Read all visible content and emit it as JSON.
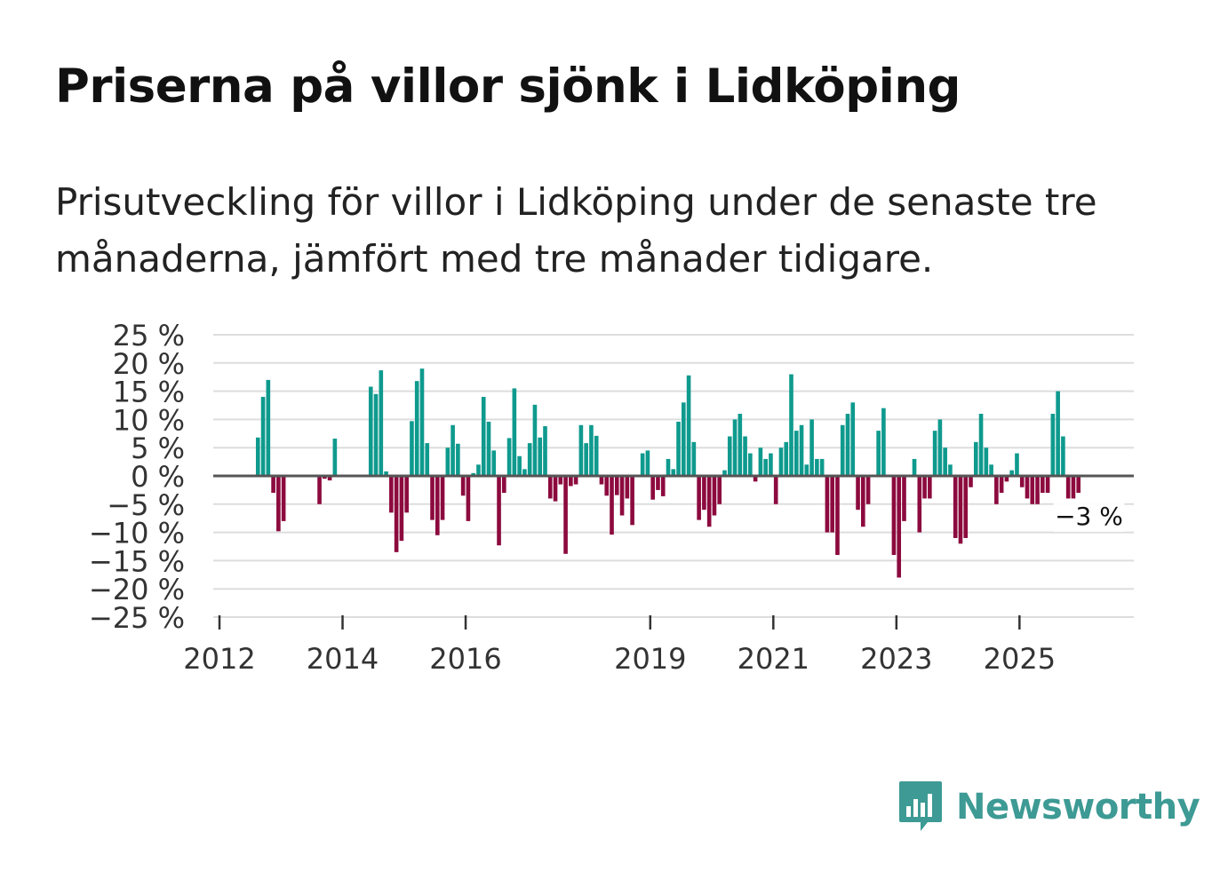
{
  "title": "Priserna på villor sjönk i Lidköping",
  "subtitle": "Prisutveckling för villor i Lidköping under de senaste tre månaderna, jämfört med tre månader tidigare.",
  "brand": {
    "name": "Newsworthy",
    "color": "#3d9a94",
    "icon": "bar-chart-speech-bubble-icon"
  },
  "colors": {
    "positive": "#0f9a8e",
    "negative": "#8c0a3e",
    "grid": "#dddddd",
    "zero_line": "#555555"
  },
  "chart_data": {
    "type": "bar",
    "title": "Priserna på villor sjönk i Lidköping",
    "xlabel": "",
    "ylabel": "",
    "ylim": [
      -25,
      25
    ],
    "y_ticks": [
      25,
      20,
      15,
      10,
      5,
      0,
      -5,
      -10,
      -15,
      -20,
      -25
    ],
    "y_tick_labels": [
      "25 %",
      "20 %",
      "15 %",
      "10 %",
      "5 %",
      "0 %",
      "−5 %",
      "−10 %",
      "−15 %",
      "−20 %",
      "−25 %"
    ],
    "x_range": [
      2012.0,
      2026.67
    ],
    "x_ticks": [
      2012,
      2014,
      2016,
      2019,
      2021,
      2023,
      2025
    ],
    "x_tick_labels": [
      "2012",
      "2014",
      "2016",
      "2019",
      "2021",
      "2023",
      "2025"
    ],
    "grid": true,
    "start": "2012-01",
    "frequency": "monthly",
    "values": [
      null,
      null,
      null,
      null,
      null,
      null,
      null,
      6.8,
      14,
      17,
      -3,
      -9.8,
      -8,
      null,
      null,
      null,
      null,
      null,
      null,
      -5,
      -0.5,
      -0.8,
      6.6,
      null,
      null,
      null,
      null,
      null,
      null,
      15.8,
      14.5,
      18.7,
      0.8,
      -6.5,
      -13.5,
      -11.5,
      -6.5,
      9.7,
      16.8,
      19,
      5.8,
      -7.8,
      -10.5,
      -7.8,
      5,
      9,
      5.7,
      -3.5,
      -8,
      0.5,
      2,
      14,
      9.6,
      4.5,
      -12.3,
      -3,
      6.7,
      15.5,
      3.5,
      1.2,
      5.8,
      12.6,
      6.8,
      8.8,
      -4,
      -4.5,
      -1.5,
      -13.8,
      -1.8,
      -1.5,
      9,
      5.8,
      9,
      7.1,
      -1.5,
      -3.5,
      -10.4,
      -3.4,
      -7,
      -4,
      -8.7,
      null,
      4,
      4.5,
      -4.2,
      -2.5,
      -3.6,
      3,
      1.2,
      9.6,
      13,
      17.8,
      6,
      -7.8,
      -6,
      -9,
      -7,
      -5,
      1,
      7,
      10,
      11,
      7,
      4,
      -1,
      5,
      3,
      4,
      -5,
      5,
      6,
      18,
      8,
      9,
      2,
      10,
      3,
      3,
      -10,
      -10,
      -14,
      9,
      11,
      13,
      -6,
      -9,
      -5,
      null,
      8,
      12,
      null,
      -14,
      -18,
      -8,
      null,
      3,
      -10,
      -4,
      -4,
      8,
      10,
      5,
      2,
      -11,
      -12,
      -11,
      -2,
      6,
      11,
      5,
      2,
      -5,
      -3,
      -1,
      1,
      4,
      -2,
      -4,
      -5,
      -5,
      -3,
      -3,
      11,
      15,
      7,
      -4,
      -4,
      -3
    ],
    "annotations": [
      {
        "text": "−3 %",
        "x": "2026-01",
        "y": -3
      }
    ]
  }
}
